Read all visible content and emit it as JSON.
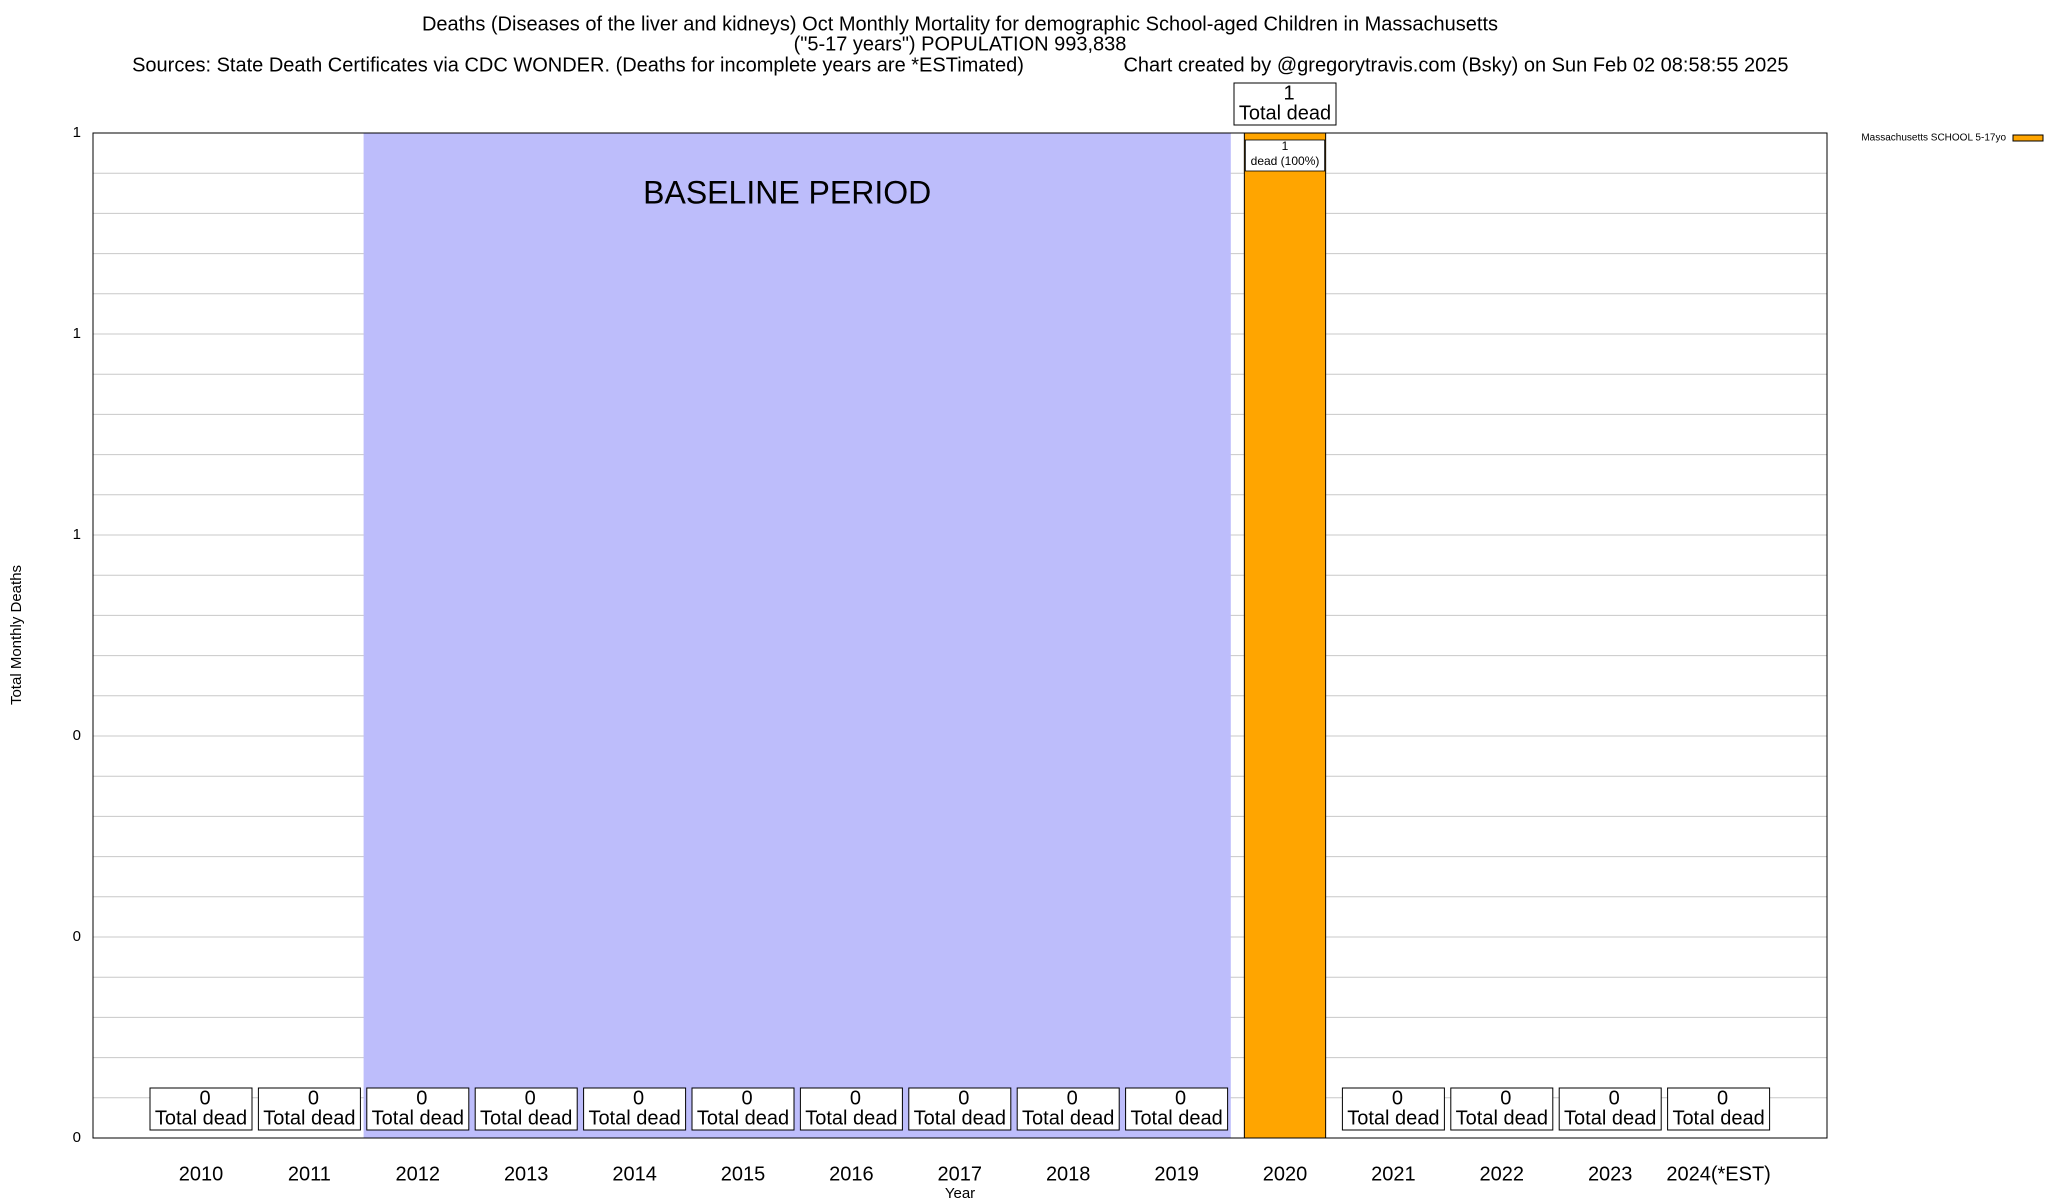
{
  "chart_data": {
    "type": "bar",
    "title": "Deaths (Diseases of the liver and kidneys) Oct Monthly Mortality for demographic School-aged Children in Massachusetts",
    "subtitle": "(\"5-17 years\") POPULATION 993,838",
    "source": "Sources: State Death Certificates via CDC WONDER. (Deaths for incomplete years are *ESTimated)",
    "credit": "Chart created by @gregorytravis.com (Bsky) on Sun Feb 02 08:58:55 2025",
    "y_label": "Total Monthly Deaths",
    "x_label": "Year",
    "categories": [
      "2010",
      "2011",
      "2012",
      "2013",
      "2014",
      "2015",
      "2016",
      "2017",
      "2018",
      "2019",
      "2020",
      "2021",
      "2022",
      "2023",
      "2024(*EST)"
    ],
    "series": [
      {
        "name": "Massachusetts SCHOOL 5-17yo",
        "color": "#ffa500",
        "values": [
          0,
          0,
          0,
          0,
          0,
          0,
          0,
          0,
          0,
          0,
          1,
          0,
          0,
          0,
          0
        ]
      }
    ],
    "total_label": "Total dead",
    "segment_label": "dead (100%)",
    "baseline": {
      "label": "BASELINE PERIOD",
      "start": "2012",
      "end": "2019",
      "color": "#bdbdfb"
    },
    "ylim": [
      0,
      1
    ],
    "yticks": [
      0,
      {
        "value": 0.2,
        "label": "0"
      },
      {
        "value": 0.4,
        "label": "0"
      },
      {
        "value": 0.6,
        "label": "1"
      },
      {
        "value": 0.8,
        "label": "1"
      },
      1
    ],
    "grid": true,
    "legend": "top-right"
  }
}
